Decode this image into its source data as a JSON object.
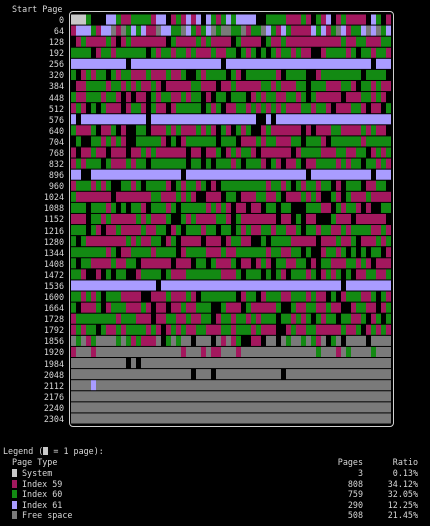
{
  "header": {
    "title": "Start Page"
  },
  "row_labels": [
    "0",
    "64",
    "128",
    "192",
    "256",
    "320",
    "384",
    "448",
    "512",
    "576",
    "640",
    "704",
    "768",
    "832",
    "896",
    "960",
    "1024",
    "1088",
    "1152",
    "1216",
    "1280",
    "1344",
    "1408",
    "1472",
    "1536",
    "1600",
    "1664",
    "1728",
    "1792",
    "1856",
    "1920",
    "1984",
    "2048",
    "2112",
    "2176",
    "2240",
    "2304"
  ],
  "map": {
    "pages_per_row": 64,
    "total_pages": 2368,
    "colors": {
      "system": "#c8c8c8",
      "index59": "#a3185e",
      "index60": "#138a13",
      "index61": "#a99cff",
      "free": "#7a7a7a",
      "unused": "#000000"
    }
  },
  "legend": {
    "title_prefix": "Legend (",
    "title_suffix": " = 1 page):",
    "columns": {
      "type": "Page Type",
      "pages": "Pages",
      "ratio": "Ratio"
    },
    "rows": [
      {
        "type": "System",
        "pages": "3",
        "ratio": "0.13%",
        "color": "#c8c8c8"
      },
      {
        "type": "Index 59",
        "pages": "808",
        "ratio": "34.12%",
        "color": "#a3185e"
      },
      {
        "type": "Index 60",
        "pages": "759",
        "ratio": "32.05%",
        "color": "#138a13"
      },
      {
        "type": "Index 61",
        "pages": "290",
        "ratio": "12.25%",
        "color": "#a99cff"
      },
      {
        "type": "Free space",
        "pages": "508",
        "ratio": "21.45%",
        "color": "#7a7a7a"
      }
    ]
  }
}
